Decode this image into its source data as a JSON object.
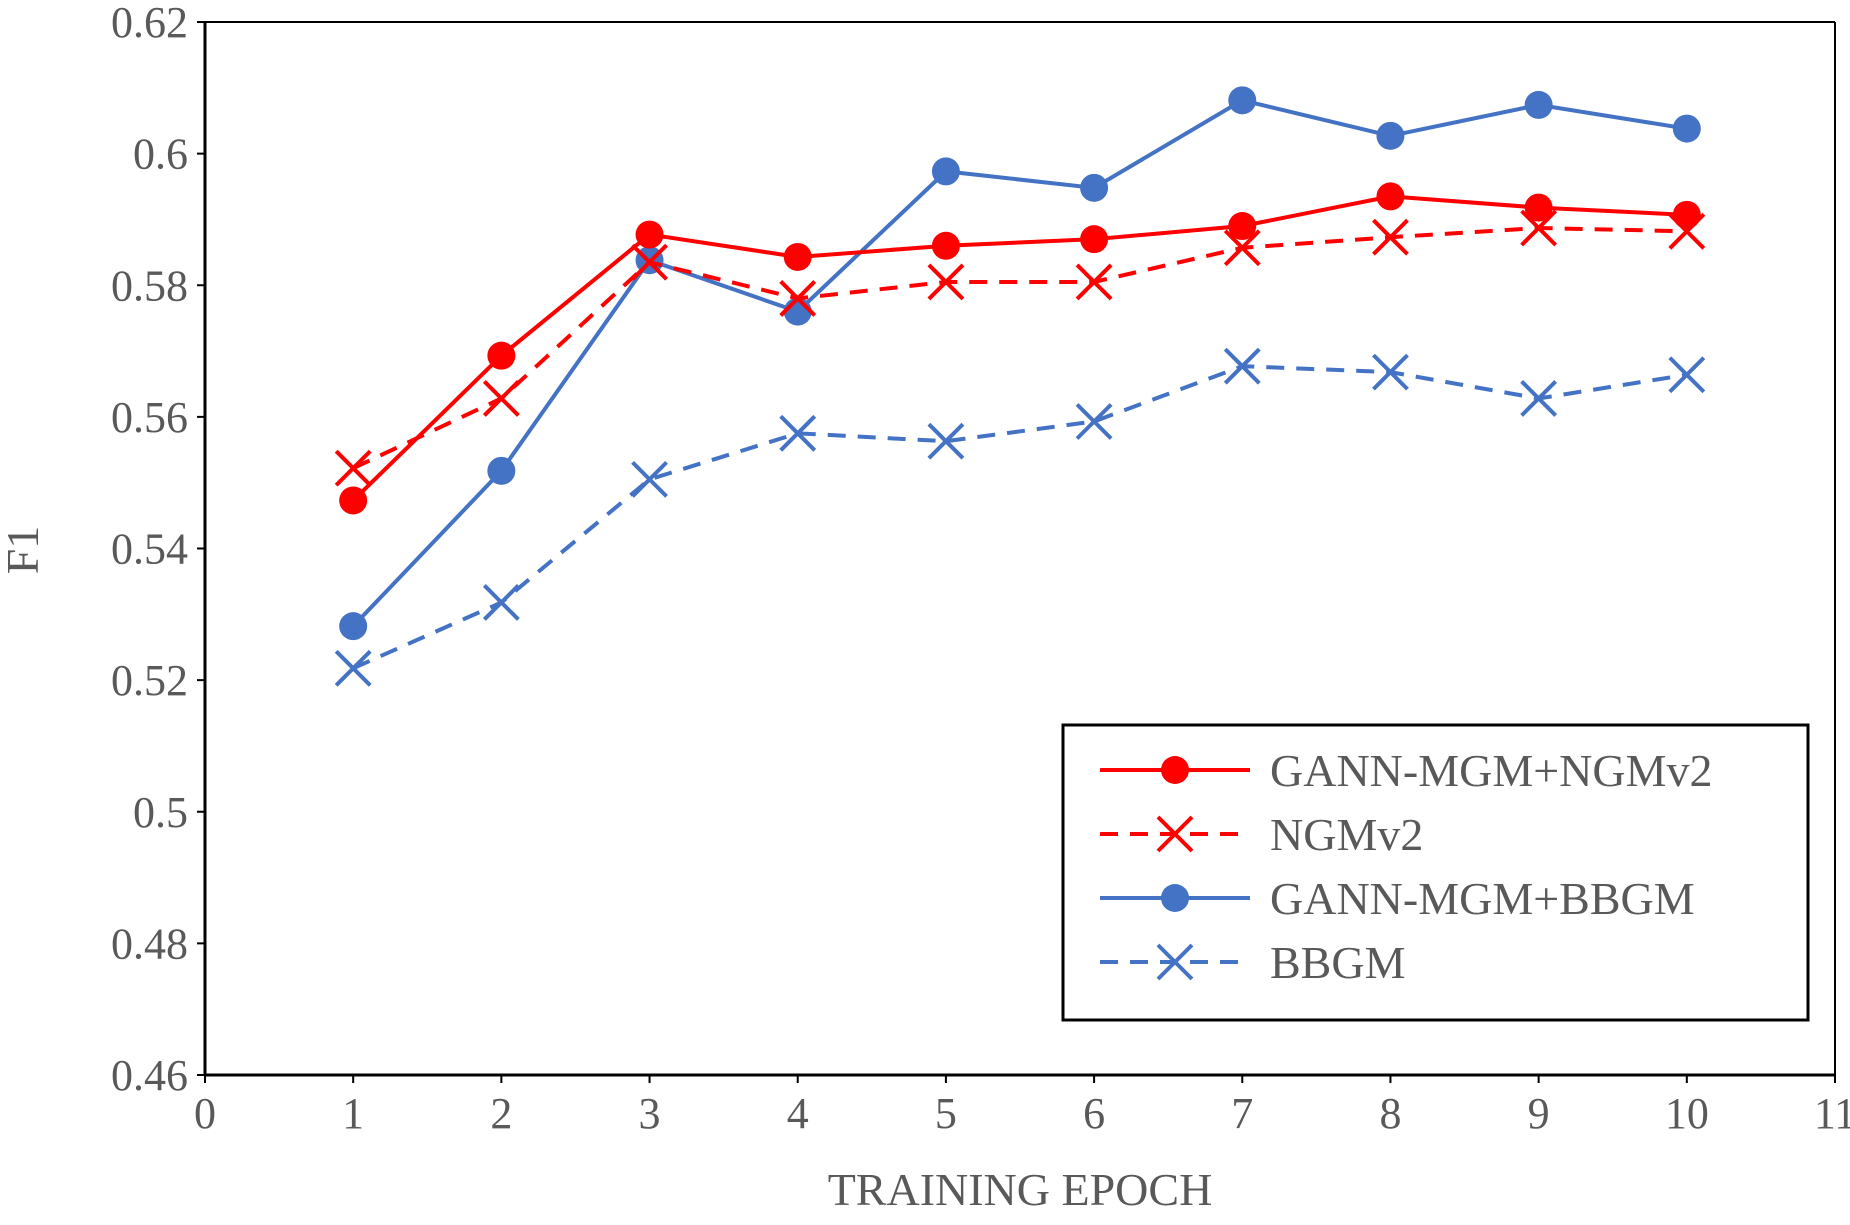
{
  "chart_data": {
    "type": "line",
    "title": "",
    "xlabel": "TRAINING EPOCH",
    "ylabel": "F1",
    "xlim": [
      0,
      11
    ],
    "ylim": [
      0.46,
      0.62
    ],
    "xticks": [
      0,
      1,
      2,
      3,
      4,
      5,
      6,
      7,
      8,
      9,
      10,
      11
    ],
    "xtick_labels": [
      "0",
      "1",
      "2",
      "3",
      "4",
      "5",
      "6",
      "7",
      "8",
      "9",
      "10",
      "11"
    ],
    "yticks": [
      0.46,
      0.48,
      0.5,
      0.52,
      0.54,
      0.56,
      0.58,
      0.6,
      0.62
    ],
    "ytick_labels": [
      "0.46",
      "0.48",
      "0.5",
      "0.52",
      "0.54",
      "0.56",
      "0.58",
      "0.6",
      "0.62"
    ],
    "grid": false,
    "legend_position": "bottom-right",
    "x": [
      1,
      2,
      3,
      4,
      5,
      6,
      7,
      8,
      9,
      10
    ],
    "series": [
      {
        "name": "GANN-MGM+NGMv2",
        "color": "#ff0000",
        "line_style": "solid",
        "marker": "circle",
        "values": [
          0.5473,
          0.5693,
          0.5877,
          0.5843,
          0.586,
          0.587,
          0.589,
          0.5935,
          0.5918,
          0.5907
        ]
      },
      {
        "name": "NGMv2",
        "color": "#ff0000",
        "line_style": "dashed",
        "marker": "x",
        "values": [
          0.5522,
          0.5628,
          0.5835,
          0.578,
          0.5805,
          0.5805,
          0.5857,
          0.5873,
          0.5887,
          0.5882
        ]
      },
      {
        "name": "GANN-MGM+BBGM",
        "color": "#4472c4",
        "line_style": "solid",
        "marker": "circle",
        "values": [
          0.5282,
          0.5518,
          0.5838,
          0.576,
          0.5973,
          0.5948,
          0.6081,
          0.6027,
          0.6074,
          0.6038
        ]
      },
      {
        "name": "BBGM",
        "color": "#4472c4",
        "line_style": "dashed",
        "marker": "x",
        "values": [
          0.5218,
          0.5318,
          0.5505,
          0.5575,
          0.5563,
          0.5593,
          0.5677,
          0.5668,
          0.5628,
          0.5664
        ]
      }
    ]
  }
}
